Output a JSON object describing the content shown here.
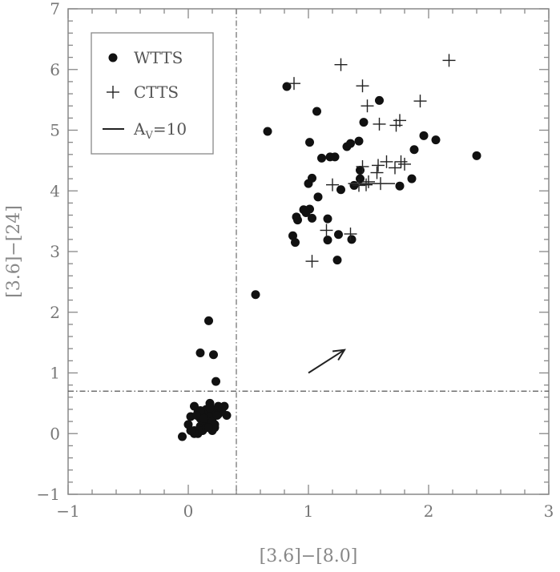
{
  "chart_data": {
    "type": "scatter",
    "xlabel": "[3.6]−[8.0]",
    "ylabel": "[3.6]−[24]",
    "xlim": [
      -1,
      3
    ],
    "ylim": [
      -1,
      7
    ],
    "x_ticks": [
      "−1",
      "0",
      "1",
      "2",
      "3"
    ],
    "y_ticks": [
      "−1",
      "0",
      "1",
      "2",
      "3",
      "4",
      "5",
      "6",
      "7"
    ],
    "x_tick_values": [
      -1,
      0,
      1,
      2,
      3
    ],
    "y_tick_values": [
      -1,
      0,
      1,
      2,
      3,
      4,
      5,
      6,
      7
    ],
    "grid": false,
    "legend_position": "top-left",
    "legend": {
      "wtts": "WTTS",
      "ctts": "CTTS",
      "av_prefix": "A",
      "av_sub": "V",
      "av_suffix": "=10"
    },
    "reference_lines": {
      "vertical_x": 0.4,
      "horizontal_y": 0.7
    },
    "reddening_vector": {
      "from": [
        1.0,
        1.0
      ],
      "to": [
        1.3,
        1.38
      ]
    },
    "series": [
      {
        "name": "WTTS",
        "marker": "filled-circle",
        "x": [
          -0.05,
          0.02,
          0.05,
          0.0,
          0.08,
          0.1,
          0.12,
          0.15,
          0.18,
          0.2,
          0.22,
          0.25,
          0.1,
          0.12,
          0.15,
          0.05,
          0.08,
          0.18,
          0.2,
          0.3,
          0.32,
          0.05,
          0.1,
          0.15,
          0.2,
          0.25,
          0.12,
          0.18,
          0.22,
          0.28,
          0.07,
          0.13,
          0.17,
          0.02,
          0.24,
          0.1,
          0.17,
          0.21,
          0.23,
          0.56,
          0.66,
          0.82,
          1.01,
          1.07,
          1.11,
          1.18,
          1.27,
          1.32,
          1.35,
          1.43,
          1.46,
          1.59,
          1.42,
          1.38,
          1.43,
          1.25,
          1.08,
          1.0,
          1.03,
          1.01,
          0.96,
          0.98,
          1.03,
          0.9,
          0.87,
          0.89,
          0.91,
          1.16,
          1.16,
          1.22,
          1.36,
          1.24,
          1.76,
          1.86,
          1.88,
          1.96,
          2.06,
          2.4
        ],
        "y": [
          -0.05,
          0.28,
          0.05,
          0.15,
          0.0,
          0.12,
          0.35,
          0.2,
          0.3,
          0.4,
          0.1,
          0.45,
          0.25,
          0.05,
          0.4,
          0.45,
          0.35,
          0.5,
          0.2,
          0.45,
          0.3,
          0.0,
          0.38,
          0.1,
          0.05,
          0.32,
          0.22,
          0.42,
          0.15,
          0.4,
          0.3,
          0.25,
          0.1,
          0.05,
          0.3,
          1.33,
          1.86,
          1.3,
          0.86,
          2.29,
          4.98,
          5.72,
          4.8,
          5.31,
          4.54,
          4.56,
          4.02,
          4.73,
          4.78,
          4.34,
          5.13,
          5.49,
          4.82,
          4.09,
          4.2,
          3.28,
          3.9,
          4.12,
          4.21,
          3.7,
          3.69,
          3.64,
          3.55,
          3.57,
          3.26,
          3.15,
          3.52,
          3.54,
          3.19,
          4.56,
          3.2,
          2.86,
          4.08,
          4.2,
          4.68,
          4.91,
          4.84,
          4.58
        ]
      },
      {
        "name": "CTTS",
        "marker": "plus",
        "x": [
          0.88,
          1.27,
          1.45,
          1.49,
          1.59,
          1.76,
          1.93,
          2.17,
          1.73,
          1.65,
          1.72,
          1.77,
          1.58,
          1.57,
          1.5,
          1.6,
          1.8,
          1.48,
          1.45,
          1.42,
          1.2,
          1.03,
          1.15,
          1.35
        ],
        "y": [
          5.77,
          6.08,
          5.73,
          5.4,
          5.1,
          5.16,
          5.48,
          6.15,
          5.08,
          4.48,
          4.38,
          4.48,
          4.42,
          4.3,
          4.15,
          4.12,
          4.44,
          4.1,
          4.4,
          4.09,
          4.1,
          2.84,
          3.35,
          3.29
        ]
      }
    ]
  }
}
